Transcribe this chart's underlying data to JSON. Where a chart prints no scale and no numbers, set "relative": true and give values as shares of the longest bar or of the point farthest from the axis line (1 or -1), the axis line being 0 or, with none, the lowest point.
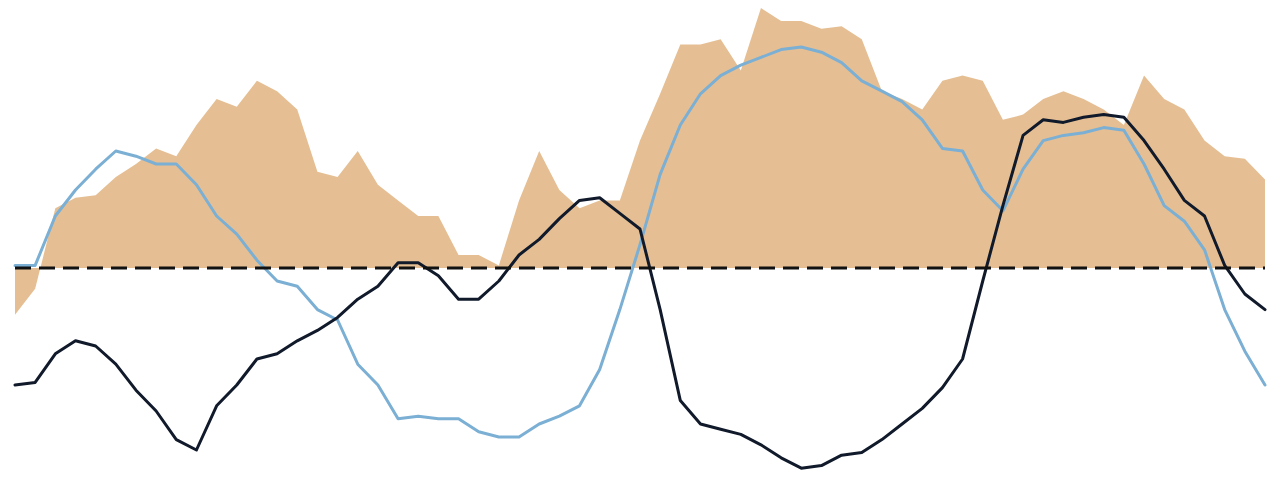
{
  "chart_data": {
    "type": "line",
    "relative": true,
    "categories": [
      null,
      null,
      null,
      null,
      null,
      null,
      null,
      null,
      null,
      null,
      null,
      null,
      null,
      null,
      null,
      null,
      null,
      null,
      null,
      null,
      null,
      null,
      null,
      null,
      null,
      null,
      null,
      null,
      null,
      null,
      null,
      null,
      null,
      null,
      null,
      null,
      null,
      null,
      null,
      null,
      null,
      null,
      null,
      null,
      null,
      null,
      null,
      null,
      null,
      null,
      null,
      null,
      null,
      null,
      null,
      null,
      null,
      null,
      null,
      null,
      null,
      null,
      null
    ],
    "series": [
      {
        "type": "area",
        "color": "#e5bf93",
        "values": [
          -0.18,
          -0.08,
          0.23,
          0.27,
          0.28,
          0.35,
          0.4,
          0.46,
          0.43,
          0.55,
          0.65,
          0.62,
          0.72,
          0.68,
          0.61,
          0.37,
          0.35,
          0.45,
          0.32,
          0.26,
          0.2,
          0.2,
          0.05,
          0.05,
          0.01,
          0.26,
          0.45,
          0.3,
          0.23,
          0.26,
          0.26,
          0.49,
          0.67,
          0.86,
          0.86,
          0.88,
          0.76,
          1,
          0.95,
          0.95,
          0.92,
          0.93,
          0.88,
          0.68,
          0.65,
          0.61,
          0.72,
          0.74,
          0.72,
          0.57,
          0.59,
          0.65,
          0.68,
          0.65,
          0.61,
          0.55,
          0.74,
          0.65,
          0.61,
          0.49,
          0.43,
          0.42,
          0.34
        ]
      },
      {
        "color": "#7bafd4",
        "values": [
          0.01,
          0.01,
          0.2,
          0.3,
          0.38,
          0.45,
          0.43,
          0.4,
          0.4,
          0.32,
          0.2,
          0.13,
          0.03,
          -0.05,
          -0.07,
          -0.16,
          -0.2,
          -0.37,
          -0.45,
          -0.58,
          -0.57,
          -0.58,
          -0.58,
          -0.63,
          -0.65,
          -0.65,
          -0.6,
          -0.57,
          -0.53,
          -0.39,
          -0.16,
          0.09,
          0.36,
          0.55,
          0.67,
          0.74,
          0.78,
          0.81,
          0.84,
          0.85,
          0.83,
          0.79,
          0.72,
          0.68,
          0.64,
          0.57,
          0.46,
          0.45,
          0.3,
          0.22,
          0.38,
          0.49,
          0.51,
          0.52,
          0.54,
          0.53,
          0.4,
          0.24,
          0.18,
          0.07,
          -0.16,
          -0.32,
          -0.45
        ]
      },
      {
        "color": "#111a2b",
        "values": [
          -0.45,
          -0.44,
          -0.33,
          -0.28,
          -0.3,
          -0.37,
          -0.47,
          -0.55,
          -0.66,
          -0.7,
          -0.53,
          -0.45,
          -0.35,
          -0.33,
          -0.28,
          -0.24,
          -0.19,
          -0.12,
          -0.07,
          0.02,
          0.02,
          -0.03,
          -0.12,
          -0.12,
          -0.05,
          0.05,
          0.11,
          0.19,
          0.26,
          0.27,
          0.21,
          0.15,
          -0.16,
          -0.51,
          -0.6,
          -0.62,
          -0.64,
          -0.68,
          -0.73,
          -0.77,
          -0.76,
          -0.72,
          -0.71,
          -0.66,
          -0.6,
          -0.54,
          -0.46,
          -0.35,
          -0.05,
          0.24,
          0.51,
          0.57,
          0.56,
          0.58,
          0.59,
          0.58,
          0.49,
          0.38,
          0.26,
          0.2,
          0.01,
          -0.1,
          -0.16
        ]
      }
    ],
    "ref_lines": [
      {
        "axis": "y",
        "value": 0,
        "color": "#111111",
        "line_style": "dashed"
      }
    ]
  }
}
